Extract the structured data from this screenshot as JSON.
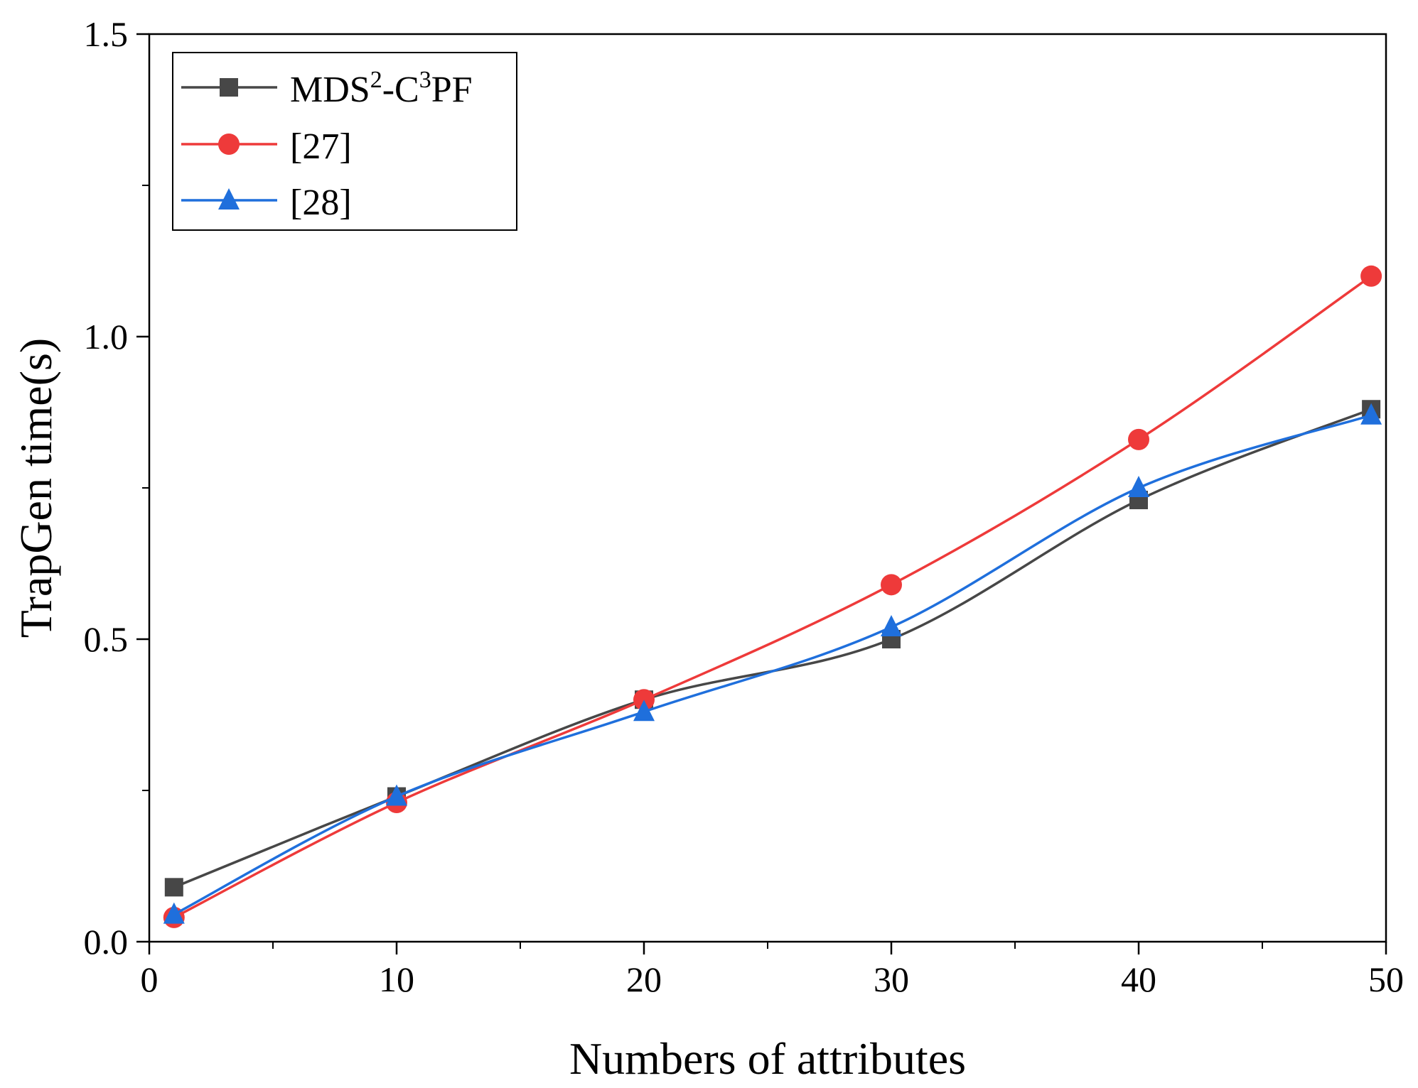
{
  "chart_data": {
    "type": "line",
    "title": "",
    "xlabel": "Numbers of attributes",
    "ylabel": "TrapGen time(s)",
    "xlim": [
      0,
      50
    ],
    "ylim": [
      0,
      1.5
    ],
    "x_ticks": [
      0,
      10,
      20,
      30,
      40,
      50
    ],
    "x_tick_labels": [
      "0",
      "10",
      "20",
      "30",
      "40",
      "50"
    ],
    "y_ticks": [
      0,
      0.5,
      1.0,
      1.5
    ],
    "y_tick_labels": [
      "0.0",
      "0.5",
      "1.0",
      "1.5"
    ],
    "x_minor_ticks": [
      5,
      15,
      25,
      35,
      45
    ],
    "y_minor_ticks": [
      0.25,
      0.75,
      1.25
    ],
    "grid": false,
    "legend_position": "top-left",
    "series": [
      {
        "name": "MDS2-C3PF",
        "label_parts": {
          "a": "MDS",
          "sup1": "2",
          "b": "-C",
          "sup2": "3",
          "c": "PF"
        },
        "color": "#474747",
        "marker": "square",
        "x": [
          1,
          10,
          20,
          30,
          40,
          49.4
        ],
        "y": [
          0.09,
          0.24,
          0.4,
          0.5,
          0.73,
          0.88
        ]
      },
      {
        "name": "[27]",
        "color": "#ee3a3a",
        "marker": "circle",
        "x": [
          1,
          10,
          20,
          30,
          40,
          49.4
        ],
        "y": [
          0.04,
          0.23,
          0.4,
          0.59,
          0.83,
          1.1
        ]
      },
      {
        "name": "[28]",
        "color": "#1f6fdc",
        "marker": "triangle",
        "x": [
          1,
          10,
          20,
          30,
          40,
          49.4
        ],
        "y": [
          0.045,
          0.24,
          0.38,
          0.52,
          0.75,
          0.87
        ]
      }
    ]
  }
}
